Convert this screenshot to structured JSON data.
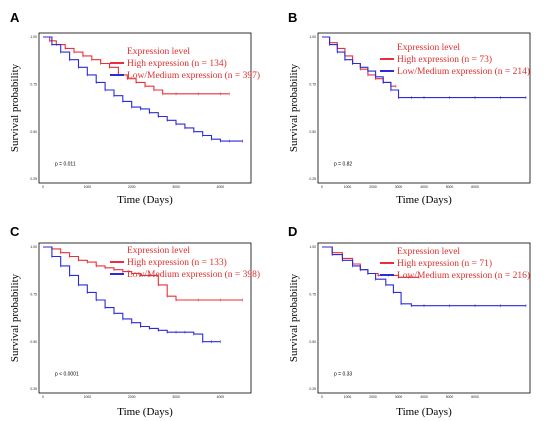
{
  "chart_data": [
    {
      "type": "line",
      "panel": "A",
      "ylabel": "Survival probability",
      "xlabel": "Time (Days)",
      "xlim": [
        0,
        4600
      ],
      "ylim": [
        0.25,
        1.0
      ],
      "xticks": [
        "0",
        "1000",
        "2000",
        "3000",
        "4000"
      ],
      "yticks": [
        "1.00",
        "0.75",
        "0.50",
        "0.25"
      ],
      "pvalue": "p = 0.011",
      "legend": {
        "title": "Expression level",
        "high": "High expression (n = 134)",
        "low": "Low/Medium expression (n = 397)"
      },
      "colors": {
        "high": "#e8303a",
        "low": "#2b2bd8"
      },
      "series": [
        {
          "name": "High expression (n = 134)",
          "x": [
            0,
            150,
            300,
            500,
            700,
            900,
            1100,
            1300,
            1500,
            1700,
            1900,
            2100,
            2300,
            2500,
            2700,
            3000,
            3500,
            4000,
            4200
          ],
          "y": [
            1.0,
            0.98,
            0.96,
            0.94,
            0.92,
            0.9,
            0.88,
            0.86,
            0.84,
            0.8,
            0.78,
            0.76,
            0.74,
            0.72,
            0.7,
            0.7,
            0.7,
            0.7,
            0.7
          ]
        },
        {
          "name": "Low/Medium expression (n = 397)",
          "x": [
            0,
            200,
            400,
            600,
            800,
            1000,
            1200,
            1400,
            1600,
            1800,
            2000,
            2200,
            2400,
            2600,
            2800,
            3000,
            3200,
            3400,
            3600,
            3800,
            4000,
            4200,
            4500
          ],
          "y": [
            1.0,
            0.96,
            0.92,
            0.88,
            0.84,
            0.8,
            0.76,
            0.72,
            0.69,
            0.66,
            0.63,
            0.62,
            0.6,
            0.58,
            0.56,
            0.54,
            0.52,
            0.5,
            0.48,
            0.46,
            0.45,
            0.45,
            0.45
          ]
        }
      ]
    },
    {
      "type": "line",
      "panel": "B",
      "ylabel": "Survival probability",
      "xlabel": "Time (Days)",
      "xlim": [
        0,
        8000
      ],
      "ylim": [
        0.25,
        1.0
      ],
      "xticks": [
        "0",
        "1000",
        "2000",
        "3000",
        "4000",
        "5000",
        "6000"
      ],
      "yticks": [
        "1.00",
        "0.75",
        "0.50",
        "0.25"
      ],
      "pvalue": "p = 0.82",
      "legend": {
        "title": "Expression level",
        "high": "High expression (n = 73)",
        "low": "Low/Medium expression (n = 214)"
      },
      "colors": {
        "high": "#e8303a",
        "low": "#2b2bd8"
      },
      "series": [
        {
          "name": "High expression (n = 73)",
          "x": [
            0,
            300,
            600,
            900,
            1200,
            1500,
            1800,
            2100,
            2400,
            2700,
            2900
          ],
          "y": [
            1.0,
            0.97,
            0.94,
            0.9,
            0.86,
            0.83,
            0.8,
            0.78,
            0.76,
            0.74,
            0.74
          ]
        },
        {
          "name": "Low/Medium expression (n = 214)",
          "x": [
            0,
            300,
            600,
            900,
            1200,
            1500,
            1800,
            2100,
            2400,
            2700,
            3000,
            3500,
            4000,
            5000,
            6000,
            7000,
            8000
          ],
          "y": [
            1.0,
            0.96,
            0.92,
            0.88,
            0.86,
            0.84,
            0.82,
            0.79,
            0.76,
            0.72,
            0.68,
            0.68,
            0.68,
            0.68,
            0.68,
            0.68,
            0.68
          ]
        }
      ]
    },
    {
      "type": "line",
      "panel": "C",
      "ylabel": "Survival probability",
      "xlabel": "Time (Days)",
      "xlim": [
        0,
        4600
      ],
      "ylim": [
        0.25,
        1.0
      ],
      "xticks": [
        "0",
        "1000",
        "2000",
        "3000",
        "4000"
      ],
      "yticks": [
        "1.00",
        "0.75",
        "0.50",
        "0.25"
      ],
      "pvalue": "p < 0.0001",
      "legend": {
        "title": "Expression level",
        "high": "High expression (n = 133)",
        "low": "Low/Medium expression (n = 398)"
      },
      "colors": {
        "high": "#e8303a",
        "low": "#2b2bd8"
      },
      "series": [
        {
          "name": "High expression (n = 133)",
          "x": [
            0,
            200,
            400,
            600,
            800,
            1000,
            1200,
            1400,
            1600,
            1800,
            2000,
            2200,
            2400,
            2600,
            2800,
            3000,
            3500,
            4000,
            4500
          ],
          "y": [
            1.0,
            0.99,
            0.97,
            0.95,
            0.93,
            0.92,
            0.9,
            0.89,
            0.88,
            0.87,
            0.86,
            0.85,
            0.85,
            0.8,
            0.74,
            0.72,
            0.72,
            0.72,
            0.72
          ]
        },
        {
          "name": "Low/Medium expression (n = 398)",
          "x": [
            0,
            200,
            400,
            600,
            800,
            1000,
            1200,
            1400,
            1600,
            1800,
            2000,
            2200,
            2400,
            2600,
            2800,
            3000,
            3200,
            3400,
            3600,
            3800,
            4000
          ],
          "y": [
            1.0,
            0.95,
            0.9,
            0.85,
            0.8,
            0.76,
            0.72,
            0.68,
            0.65,
            0.62,
            0.6,
            0.58,
            0.57,
            0.56,
            0.55,
            0.55,
            0.55,
            0.54,
            0.5,
            0.5,
            0.5
          ]
        }
      ]
    },
    {
      "type": "line",
      "panel": "D",
      "ylabel": "Survival probability",
      "xlabel": "Time (Days)",
      "xlim": [
        0,
        8000
      ],
      "ylim": [
        0.25,
        1.0
      ],
      "xticks": [
        "0",
        "1000",
        "2000",
        "3000",
        "4000",
        "5000",
        "6000"
      ],
      "yticks": [
        "1.00",
        "0.75",
        "0.50",
        "0.25"
      ],
      "pvalue": "p = 0.33",
      "legend": {
        "title": "Expression level",
        "high": "High expression (n = 71)",
        "low": "Low/Medium expression (n = 216)"
      },
      "colors": {
        "high": "#e8303a",
        "low": "#2b2bd8"
      },
      "series": [
        {
          "name": "High expression (n = 71)",
          "x": [
            0,
            400,
            800,
            1200,
            1500,
            1800,
            2200,
            2600,
            3000,
            3400,
            3800
          ],
          "y": [
            1.0,
            0.97,
            0.94,
            0.91,
            0.88,
            0.86,
            0.85,
            0.85,
            0.84,
            0.84,
            0.84
          ]
        },
        {
          "name": "Low/Medium expression (n = 216)",
          "x": [
            0,
            400,
            800,
            1200,
            1500,
            1800,
            2100,
            2500,
            2800,
            3100,
            3500,
            4000,
            5000,
            6000,
            7000,
            8000
          ],
          "y": [
            1.0,
            0.96,
            0.93,
            0.9,
            0.88,
            0.86,
            0.83,
            0.8,
            0.76,
            0.7,
            0.69,
            0.69,
            0.69,
            0.69,
            0.69,
            0.69
          ]
        }
      ]
    }
  ]
}
